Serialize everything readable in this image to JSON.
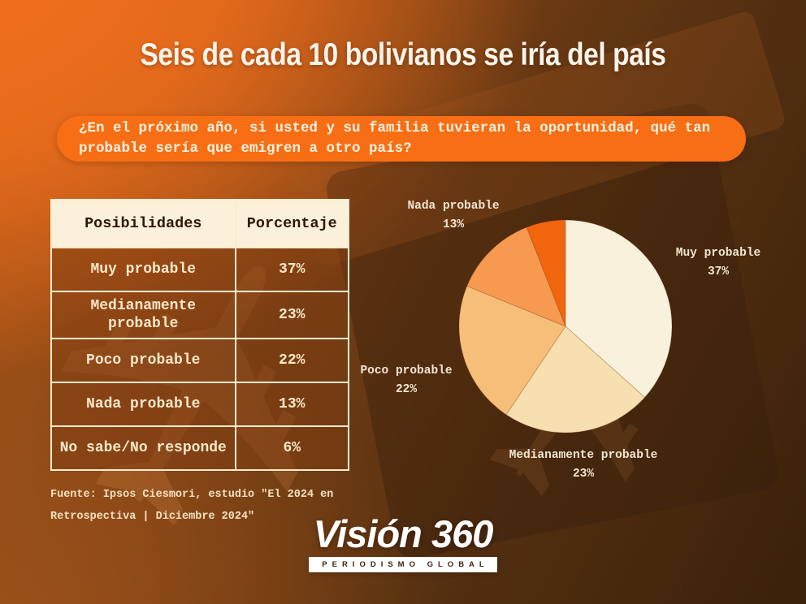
{
  "title": "Seis de cada 10 bolivianos se iría del país",
  "question": "¿En el próximo año, si usted y su familia tuvieran la oportunidad, qué tan probable sería que emigren a otro país?",
  "table": {
    "headers": [
      "Posibilidades",
      "Porcentaje"
    ],
    "rows": [
      {
        "label": "Muy probable",
        "value": "37%"
      },
      {
        "label": "Medianamente probable",
        "value": "23%"
      },
      {
        "label": "Poco probable",
        "value": "22%"
      },
      {
        "label": "Nada probable",
        "value": "13%"
      },
      {
        "label": "No sabe/No responde",
        "value": "6%"
      }
    ]
  },
  "chart_data": {
    "type": "pie",
    "categories": [
      "Muy probable",
      "Medianamente probable",
      "Poco probable",
      "Nada probable",
      "No sabe/No responde"
    ],
    "values": [
      37,
      23,
      22,
      13,
      6
    ],
    "unit": "%",
    "start_angle_deg": 0,
    "direction": "clockwise",
    "colors": [
      "#F9F1DC",
      "#F7DFAF",
      "#F6BE78",
      "#F79A50",
      "#F1650E"
    ],
    "labeled_slices": [
      "Muy probable",
      "Medianamente probable",
      "Poco probable",
      "Nada probable"
    ],
    "legend_position": "around-pie",
    "grid": false
  },
  "source": "Fuente: Ipsos Ciesmori, estudio \"El 2024 en Retrospectiva | Diciembre 2024\"",
  "logo": {
    "name": "Visión 360",
    "tagline": "PERIODISMO GLOBAL"
  },
  "icons": {
    "airplane": "✈"
  },
  "palette": {
    "background_top_left": "#EF6D1D",
    "background_bottom_right": "#3A2108",
    "question_box": "#F76E15",
    "table_header_bg": "#FBF0D9",
    "table_header_text": "#2E1708",
    "table_cell_bg": "rgba(125,60,18,0.50)",
    "table_border": "#F8ECD0",
    "cream_text": "#FCE9CA",
    "title_text": "#FBF4EA"
  }
}
